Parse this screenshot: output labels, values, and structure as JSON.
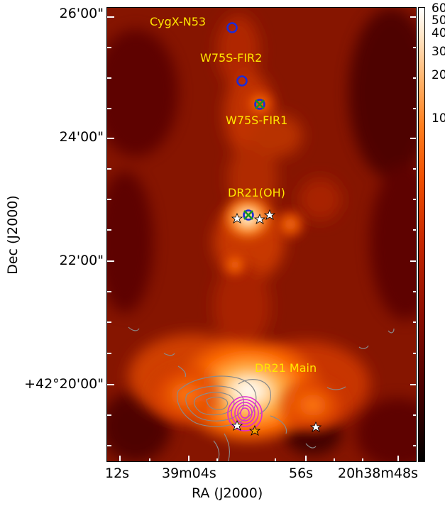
{
  "axes": {
    "xlabel": "RA (J2000)",
    "ylabel": "Dec (J2000)",
    "xticks": [
      "12s",
      "39m04s",
      "56s",
      "20h38m48s"
    ],
    "yticks": [
      "26'00\"",
      "24'00\"",
      "22'00\"",
      "+42°20'00\""
    ]
  },
  "colorbar": {
    "ticks": [
      "60",
      "50",
      "40",
      "30",
      "20",
      "10"
    ]
  },
  "annotations": {
    "cygx_n53": "CygX-N53",
    "w75s_fir2": "W75S-FIR2",
    "w75s_fir1": "W75S-FIR1",
    "dr21_oh": "DR21(OH)",
    "dr21_main": "DR21 Main"
  },
  "colors": {
    "annotation": "#ffe600",
    "circle_marker": "#1e2bd6",
    "cross_marker": "#1a9a1a",
    "contour_gray": "#8a8a8a",
    "contour_magenta": "#e02ad2",
    "star_fill": "#ffffff",
    "star_fill_orange": "#f4a000"
  }
}
